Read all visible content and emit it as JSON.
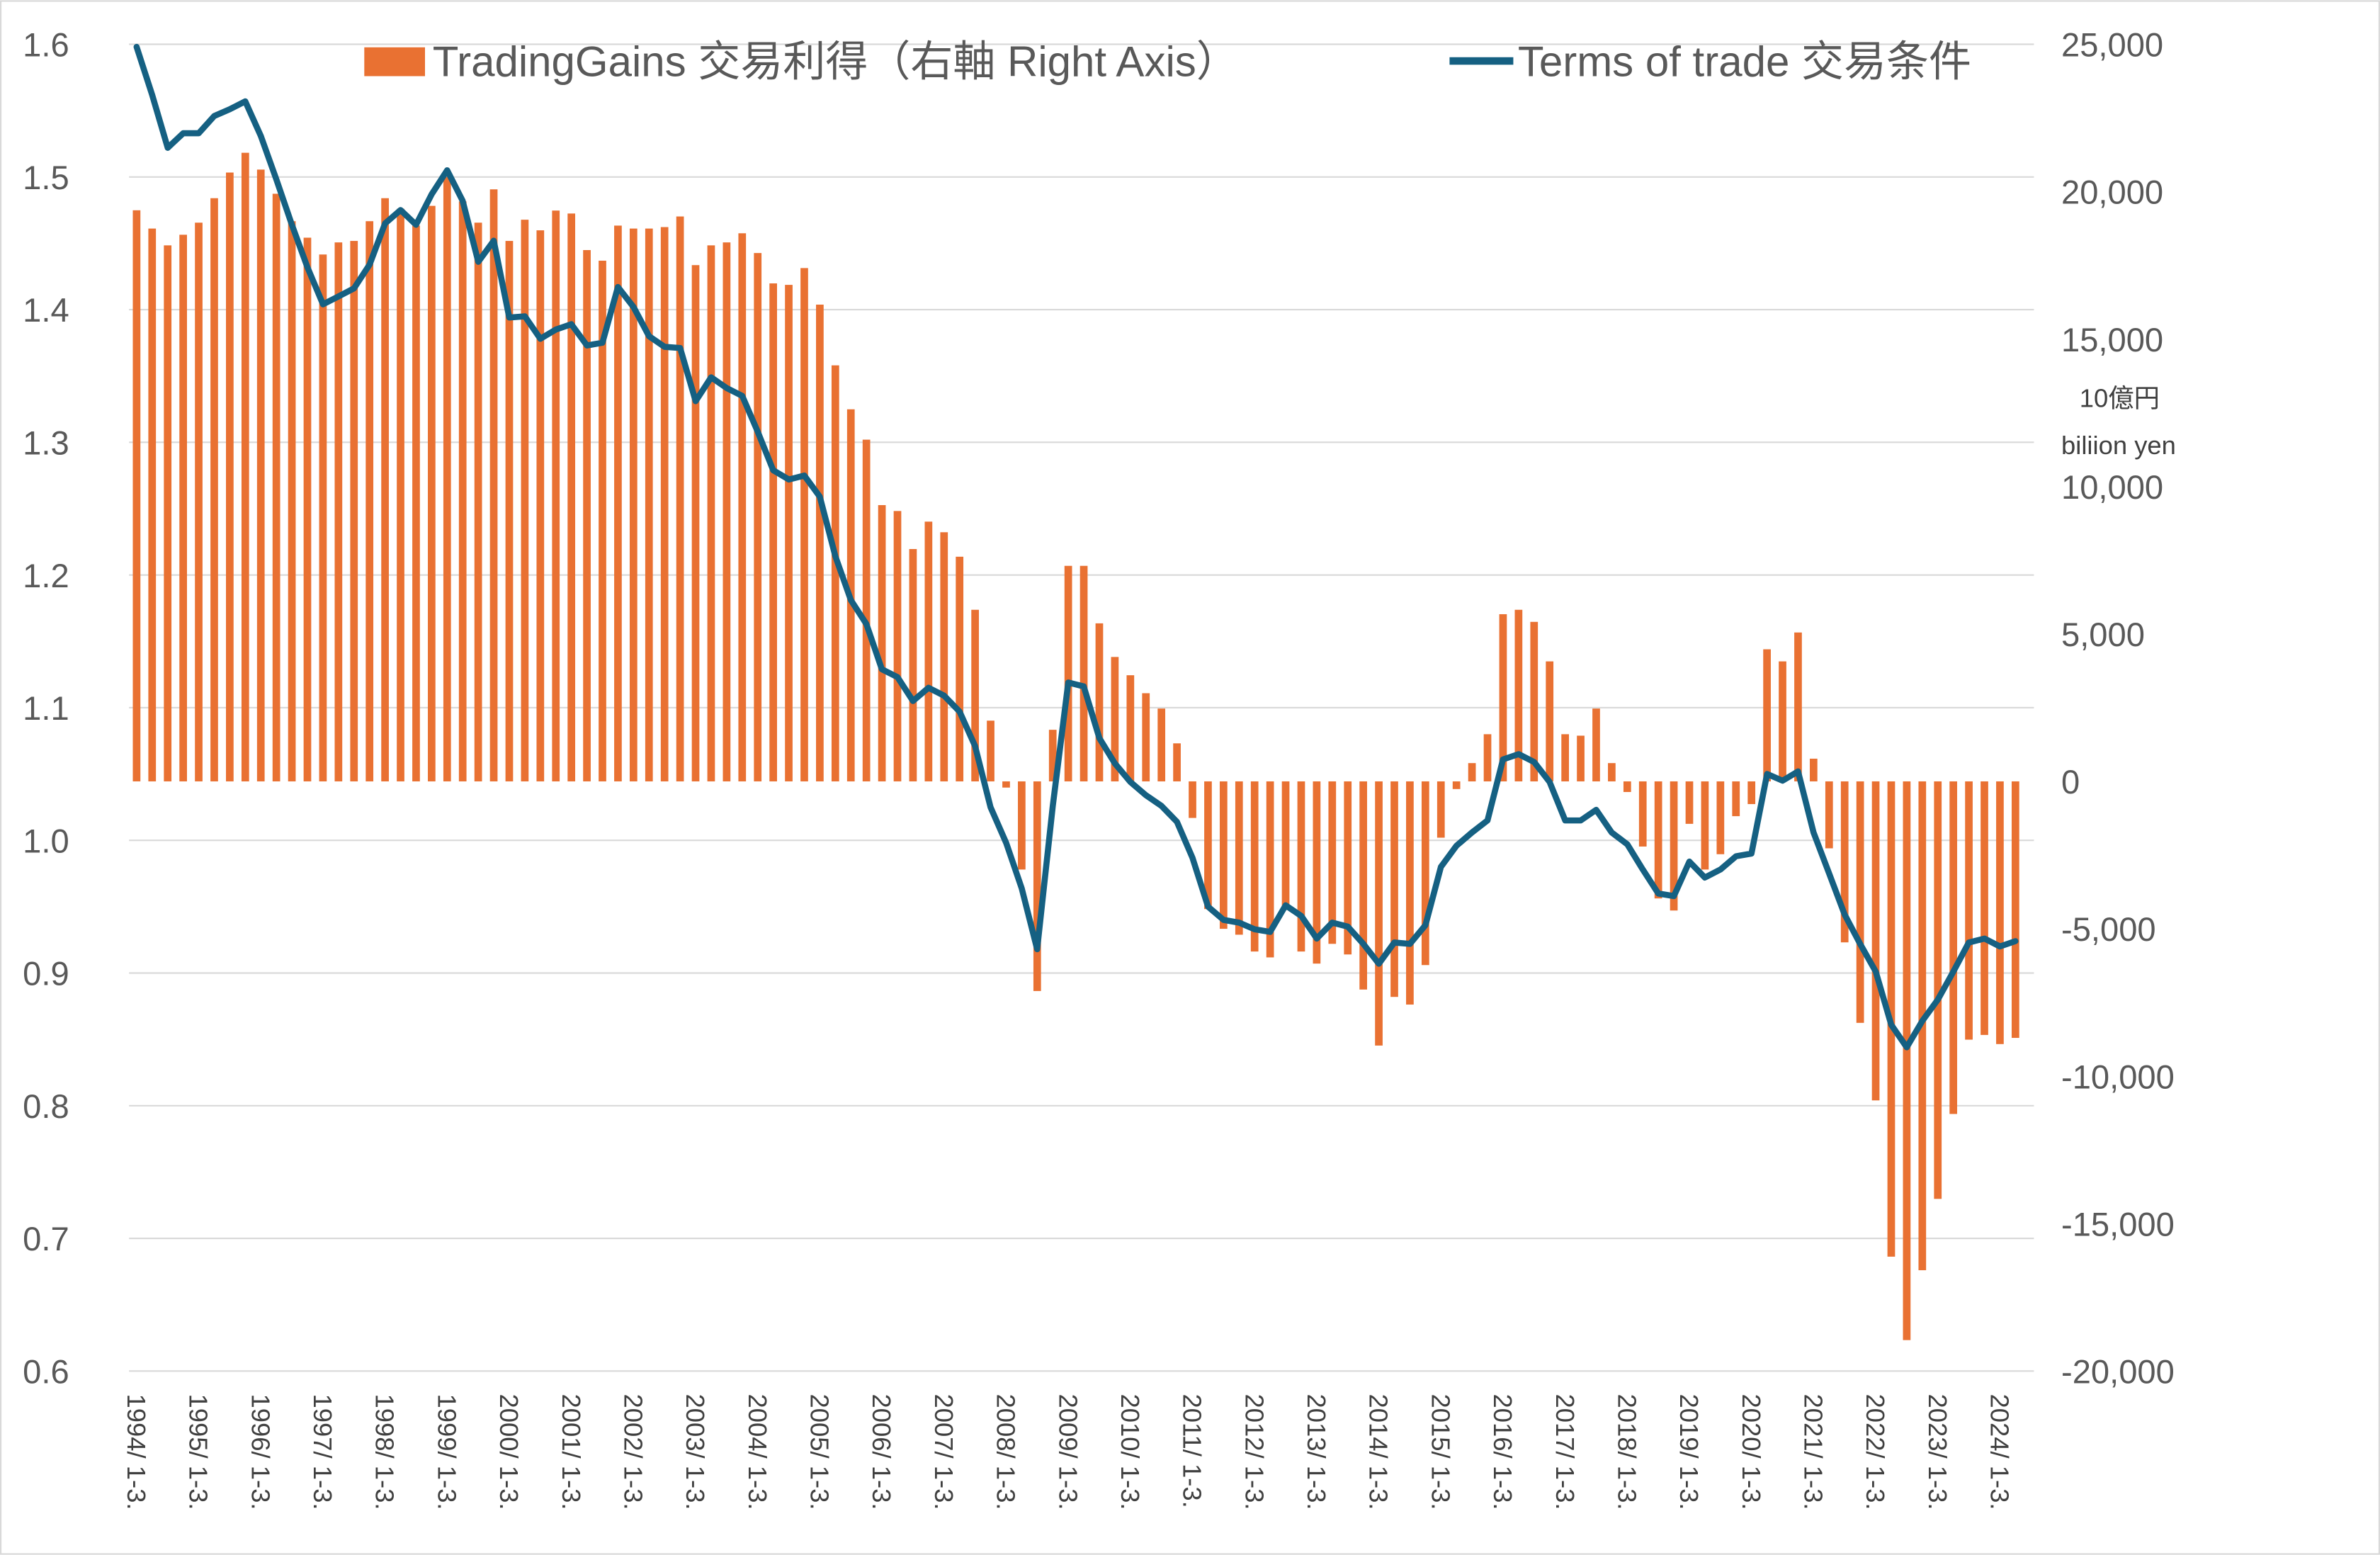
{
  "chart_data": {
    "type": "bar+line",
    "title": "",
    "legend_position": "top",
    "series": [
      {
        "name": "TradingGains 交易利得（右軸 Right Axis）",
        "type": "bar",
        "axis": "right",
        "color": "#E97132",
        "values": [
          19370,
          18750,
          18180,
          18540,
          18950,
          19780,
          20650,
          21320,
          20750,
          19930,
          19000,
          18440,
          17870,
          18280,
          18330,
          19000,
          19780,
          19420,
          18850,
          19520,
          20500,
          19670,
          18950,
          20080,
          18330,
          19050,
          18690,
          19360,
          19260,
          18020,
          17660,
          18850,
          18750,
          18750,
          18800,
          19160,
          17510,
          18180,
          18280,
          18590,
          17920,
          16890,
          16840,
          17410,
          16170,
          14110,
          12620,
          11590,
          9370,
          9170,
          7880,
          8810,
          8450,
          7620,
          5820,
          2060,
          -210,
          -2990,
          -7110,
          1750,
          7310,
          7310,
          5360,
          4220,
          3600,
          2990,
          2470,
          1290,
          -1240,
          -4330,
          -5000,
          -5200,
          -5770,
          -5970,
          -4270,
          -5770,
          -6180,
          -5510,
          -5870,
          -7060,
          -8960,
          -7310,
          -7570,
          -6230,
          -1910,
          -260,
          620,
          1600,
          5670,
          5820,
          5410,
          4070,
          1600,
          1550,
          2470,
          620,
          -360,
          -2210,
          -3970,
          -4380,
          -1440,
          -2990,
          -2470,
          -1180,
          -770,
          4480,
          4070,
          5050,
          770,
          -2270,
          -5460,
          -8190,
          -10820,
          -16120,
          -18950,
          -16580,
          -14160,
          -11280,
          -8760,
          -8600,
          -8910,
          -8700
        ]
      },
      {
        "name": "Terms of trade 交易条件",
        "type": "line",
        "axis": "left",
        "color": "#156082",
        "values": [
          1.598,
          1.562,
          1.522,
          1.533,
          1.533,
          1.546,
          1.551,
          1.557,
          1.531,
          1.498,
          1.464,
          1.432,
          1.404,
          1.41,
          1.416,
          1.434,
          1.465,
          1.475,
          1.464,
          1.487,
          1.505,
          1.482,
          1.436,
          1.452,
          1.394,
          1.395,
          1.378,
          1.385,
          1.389,
          1.373,
          1.375,
          1.417,
          1.402,
          1.38,
          1.372,
          1.371,
          1.331,
          1.349,
          1.341,
          1.335,
          1.308,
          1.279,
          1.272,
          1.275,
          1.259,
          1.214,
          1.181,
          1.163,
          1.129,
          1.123,
          1.105,
          1.115,
          1.109,
          1.097,
          1.071,
          1.025,
          0.998,
          0.964,
          0.918,
          1.026,
          1.119,
          1.116,
          1.077,
          1.058,
          1.044,
          1.034,
          1.026,
          1.014,
          0.987,
          0.95,
          0.94,
          0.938,
          0.933,
          0.931,
          0.951,
          0.943,
          0.926,
          0.938,
          0.935,
          0.922,
          0.907,
          0.923,
          0.922,
          0.936,
          0.98,
          0.996,
          1.006,
          1.015,
          1.061,
          1.065,
          1.059,
          1.044,
          1.015,
          1.015,
          1.023,
          1.006,
          0.997,
          0.978,
          0.96,
          0.958,
          0.984,
          0.972,
          0.978,
          0.988,
          0.99,
          1.05,
          1.045,
          1.052,
          1.006,
          0.975,
          0.944,
          0.922,
          0.901,
          0.861,
          0.844,
          0.864,
          0.88,
          0.901,
          0.923,
          0.926,
          0.92,
          0.924
        ]
      }
    ],
    "x_start": "1994 Q1",
    "x_end": "2024 Q2",
    "x_tick_labels": [
      "1994/ 1-3.",
      "1995/ 1-3.",
      "1996/ 1-3.",
      "1997/ 1-3.",
      "1998/ 1-3.",
      "1999/ 1-3.",
      "2000/ 1-3.",
      "2001/ 1-3.",
      "2002/ 1-3.",
      "2003/ 1-3.",
      "2004/ 1-3.",
      "2005/ 1-3.",
      "2006/ 1-3.",
      "2007/ 1-3.",
      "2008/ 1-3.",
      "2009/ 1-3.",
      "2010/ 1-3.",
      "2011/ 1-3.",
      "2012/ 1-3.",
      "2013/ 1-3.",
      "2014/ 1-3.",
      "2015/ 1-3.",
      "2016/ 1-3.",
      "2017/ 1-3.",
      "2018/ 1-3.",
      "2019/ 1-3.",
      "2020/ 1-3.",
      "2021/ 1-3.",
      "2022/ 1-3.",
      "2023/ 1-3.",
      "2024/ 1-3."
    ],
    "y_left": {
      "ylim": [
        0.6,
        1.6
      ],
      "ticks": [
        "0.6",
        "0.7",
        "0.8",
        "0.9",
        "1.0",
        "1.1",
        "1.2",
        "1.3",
        "1.4",
        "1.5",
        "1.6"
      ]
    },
    "y_right": {
      "ylim": [
        -20000,
        25000
      ],
      "ticks": [
        "-20,000",
        "-15,000",
        "-10,000",
        "-5,000",
        "0",
        "5,000",
        "10,000",
        "15,000",
        "20,000",
        "25,000"
      ],
      "unit_label_1": "10億円",
      "unit_label_2": "biliion yen"
    },
    "grid": true
  }
}
